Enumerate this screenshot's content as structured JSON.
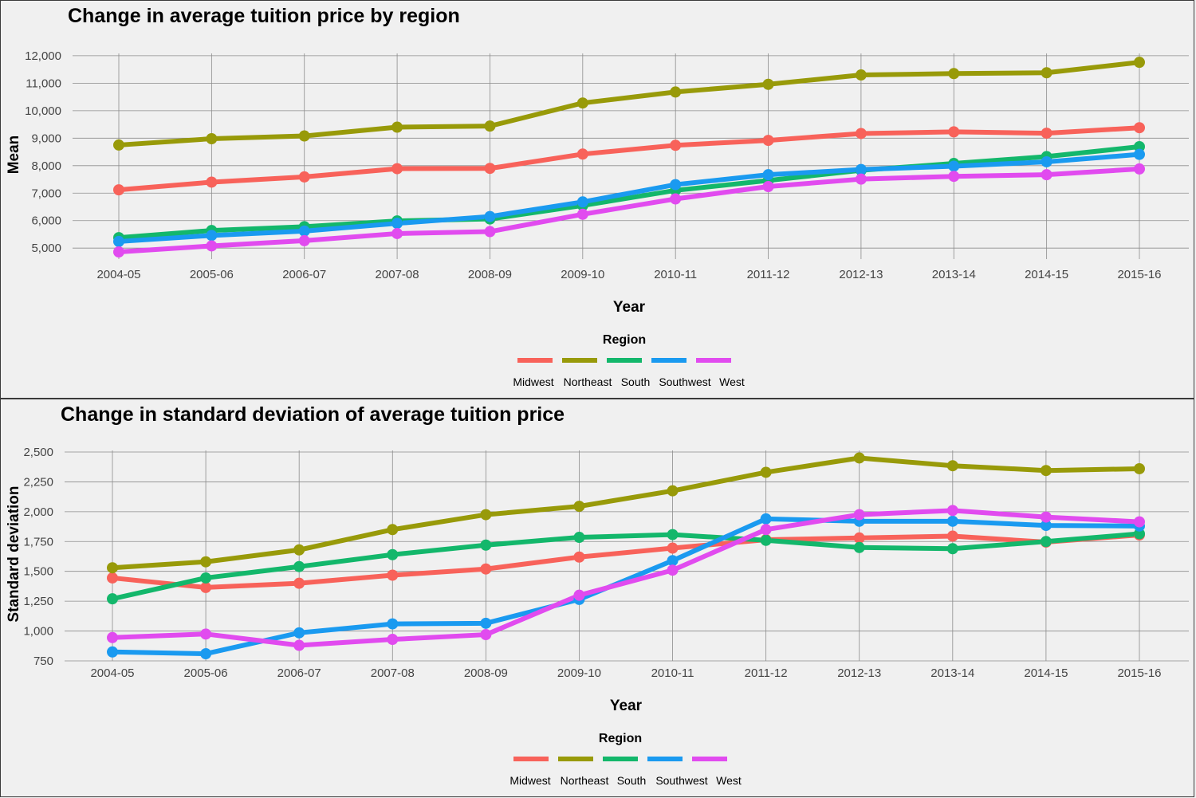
{
  "chart_data": [
    {
      "type": "line",
      "title": "Change in average tuition price by region",
      "xlabel": "Year",
      "ylabel": "Mean",
      "legend_title": "Region",
      "legend_position": "bottom",
      "grid": true,
      "ylim": [
        4600,
        12200
      ],
      "yticks": [
        5000,
        6000,
        7000,
        8000,
        9000,
        10000,
        11000,
        12000
      ],
      "ytick_labels": [
        "5,000",
        "6,000",
        "7,000",
        "8,000",
        "9,000",
        "10,000",
        "11,000",
        "12,000"
      ],
      "categories": [
        "2004-05",
        "2005-06",
        "2006-07",
        "2007-08",
        "2008-09",
        "2009-10",
        "2010-11",
        "2011-12",
        "2012-13",
        "2013-14",
        "2014-15",
        "2015-16"
      ],
      "series": [
        {
          "name": "Midwest",
          "color": "#f8625a",
          "values": [
            7120,
            7400,
            7590,
            7890,
            7900,
            8420,
            8740,
            8920,
            9170,
            9230,
            9180,
            9380
          ]
        },
        {
          "name": "Northeast",
          "color": "#989a09",
          "values": [
            8750,
            8980,
            9080,
            9400,
            9440,
            10280,
            10680,
            10960,
            11300,
            11350,
            11380,
            11760
          ]
        },
        {
          "name": "South",
          "color": "#13b76b",
          "values": [
            5380,
            5640,
            5780,
            5990,
            6060,
            6550,
            7100,
            7460,
            7830,
            8080,
            8330,
            8690
          ]
        },
        {
          "name": "Southwest",
          "color": "#1a9af0",
          "values": [
            5240,
            5460,
            5620,
            5900,
            6150,
            6680,
            7310,
            7670,
            7860,
            7980,
            8140,
            8410
          ]
        },
        {
          "name": "West",
          "color": "#e14bef",
          "values": [
            4860,
            5080,
            5270,
            5530,
            5600,
            6230,
            6790,
            7240,
            7510,
            7610,
            7670,
            7880
          ]
        }
      ]
    },
    {
      "type": "line",
      "title": "Change in standard deviation of average tuition price",
      "xlabel": "Year",
      "ylabel": "Standard deviation",
      "legend_title": "Region",
      "legend_position": "bottom",
      "grid": true,
      "ylim": [
        750,
        2540
      ],
      "yticks": [
        750,
        1000,
        1250,
        1500,
        1750,
        2000,
        2250,
        2500
      ],
      "ytick_labels": [
        "750",
        "1,000",
        "1,250",
        "1,500",
        "1,750",
        "2,000",
        "2,250",
        "2,500"
      ],
      "categories": [
        "2004-05",
        "2005-06",
        "2006-07",
        "2007-08",
        "2008-09",
        "2009-10",
        "2010-11",
        "2011-12",
        "2012-13",
        "2013-14",
        "2014-15",
        "2015-16"
      ],
      "series": [
        {
          "name": "Midwest",
          "color": "#f8625a",
          "values": [
            1445,
            1365,
            1400,
            1468,
            1520,
            1620,
            1695,
            1765,
            1780,
            1795,
            1745,
            1805
          ]
        },
        {
          "name": "Northeast",
          "color": "#989a09",
          "values": [
            1530,
            1580,
            1680,
            1850,
            1975,
            2045,
            2175,
            2330,
            2450,
            2385,
            2345,
            2360
          ]
        },
        {
          "name": "South",
          "color": "#13b76b",
          "values": [
            1270,
            1445,
            1540,
            1640,
            1720,
            1785,
            1808,
            1760,
            1700,
            1690,
            1750,
            1815
          ]
        },
        {
          "name": "Southwest",
          "color": "#1a9af0",
          "values": [
            825,
            810,
            985,
            1060,
            1065,
            1265,
            1590,
            1940,
            1920,
            1920,
            1885,
            1880
          ]
        },
        {
          "name": "West",
          "color": "#e14bef",
          "values": [
            945,
            975,
            880,
            930,
            970,
            1300,
            1510,
            1850,
            1975,
            2010,
            1955,
            1915
          ]
        }
      ]
    }
  ]
}
